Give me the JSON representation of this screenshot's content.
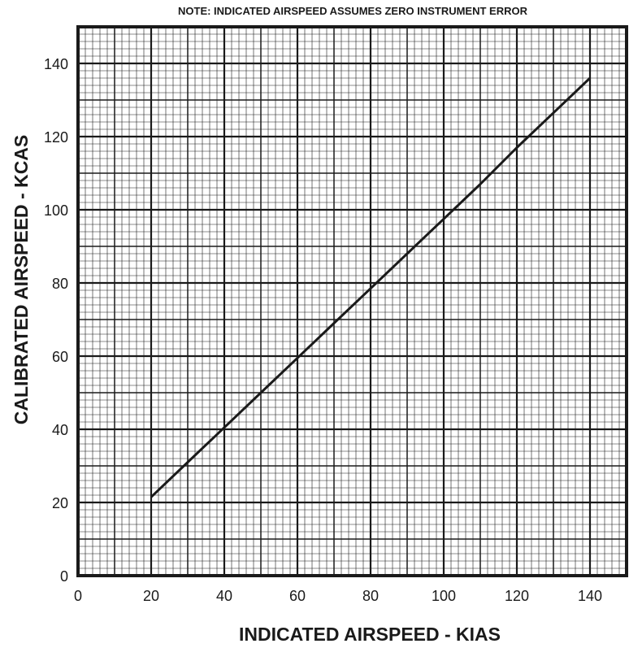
{
  "chart_data": {
    "type": "line",
    "note": "NOTE: INDICATED AIRSPEED ASSUMES ZERO INSTRUMENT ERROR",
    "xlabel": "INDICATED AIRSPEED - KIAS",
    "ylabel": "CALIBRATED AIRSPEED - KCAS",
    "xlim": [
      0,
      150
    ],
    "ylim": [
      0,
      150
    ],
    "xticks": [
      0,
      20,
      40,
      60,
      80,
      100,
      120,
      140
    ],
    "yticks": [
      0,
      20,
      40,
      60,
      80,
      100,
      120,
      140
    ],
    "grid": true,
    "series": [
      {
        "x": [
          20,
          30,
          40,
          50,
          60,
          70,
          80,
          90,
          100,
          110,
          120,
          130,
          140
        ],
        "y": [
          21.5,
          31,
          40.5,
          50,
          59.5,
          69,
          78.5,
          88,
          97.5,
          107,
          117,
          126.5,
          136
        ]
      }
    ],
    "colors": {
      "line": "#1a1a1a",
      "grid": "#1a1a1a",
      "background": "#ffffff"
    }
  }
}
